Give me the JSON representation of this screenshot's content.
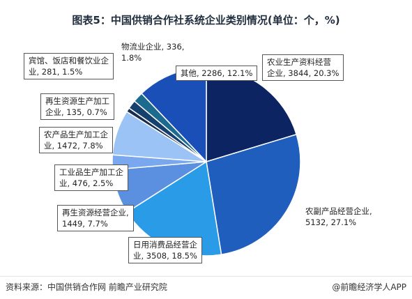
{
  "title": "图表5：中国供销合作社系统企业类别情况(单位：个，%)",
  "chart_data": {
    "type": "pie",
    "title": "图表5：中国供销合作社系统企业类别情况(单位：个，%)",
    "unit": "个，%",
    "slices": [
      {
        "name": "农业生产资料经营企业",
        "label_line1": "农业生产资料经营",
        "label_line2": "企业, 3844, 20.3%",
        "value": 3844,
        "percent": "20.3%",
        "color": "#0c2461"
      },
      {
        "name": "农副产品经营企业",
        "label_line1": "农副产品经营企业,",
        "label_line2": "5132, 27.1%",
        "value": 5132,
        "percent": "27.1%",
        "color": "#1f5ebd"
      },
      {
        "name": "日用消费品经营企业",
        "label_line1": "日用消费品经营企",
        "label_line2": "业, 3508, 18.5%",
        "value": 3508,
        "percent": "18.5%",
        "color": "#2a9be6"
      },
      {
        "name": "再生资源经营企业",
        "label_line1": "再生资源经营企业,",
        "label_line2": "1449, 7.7%",
        "value": 1449,
        "percent": "7.7%",
        "color": "#5b8fe0"
      },
      {
        "name": "工业品生产加工企业",
        "label_line1": "工业品生产加工企",
        "label_line2": "业, 476, 2.5%",
        "value": 476,
        "percent": "2.5%",
        "color": "#7aa8ee"
      },
      {
        "name": "农产品生产加工企业",
        "label_line1": "农产品生产加工企",
        "label_line2": "业, 1472, 7.8%",
        "value": 1472,
        "percent": "7.8%",
        "color": "#9cc3f5"
      },
      {
        "name": "再生资源生产加工企业",
        "label_line1": "再生资源生产加工",
        "label_line2": "企业, 135, 0.7%",
        "value": 135,
        "percent": "0.7%",
        "color": "#1a2c4e"
      },
      {
        "name": "宾馆、饭店和餐饮业企业",
        "label_line1": "宾馆、饭店和餐饮业企",
        "label_line2": "业, 281, 1.5%",
        "value": 281,
        "percent": "1.5%",
        "color": "#16406e"
      },
      {
        "name": "物流业企业",
        "label_line1": "物流业企业, 336,",
        "label_line2": "1.8%",
        "value": 336,
        "percent": "1.8%",
        "color": "#1d6a8f"
      },
      {
        "name": "其他",
        "label_line1": "其他, 2286, 12.1%",
        "label_line2": "",
        "value": 2286,
        "percent": "12.1%",
        "color": "#1b4fb8"
      }
    ]
  },
  "footer": {
    "source": "资料来源：中国供销合作网 前瞻产业研究院",
    "brand": "@前瞻经济学人APP"
  }
}
